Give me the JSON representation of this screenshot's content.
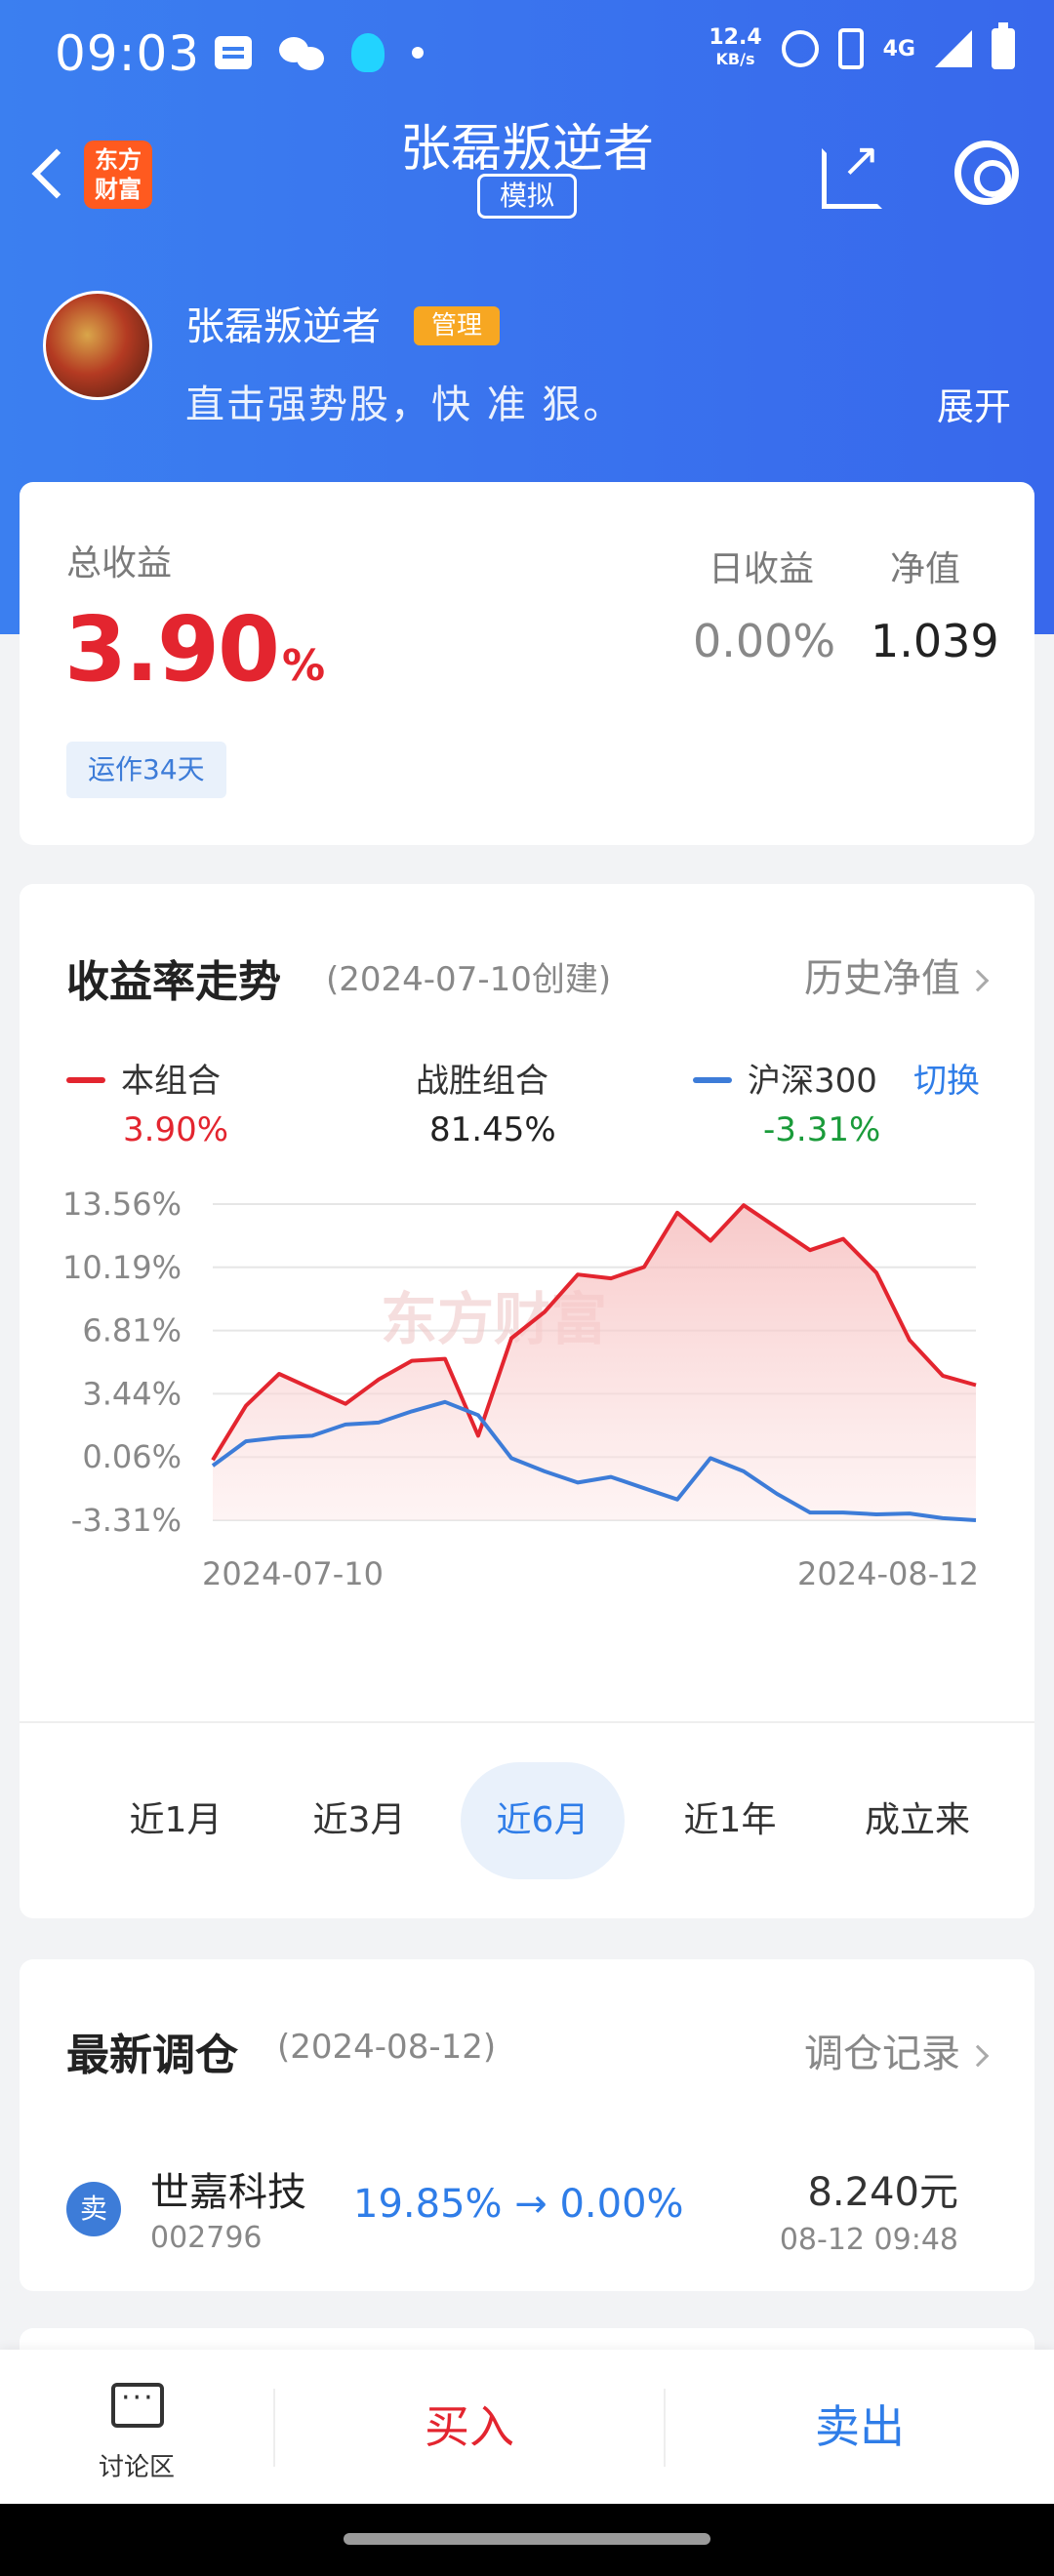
{
  "status_bar": {
    "time": "09:03",
    "net_speed_value": "12.4",
    "net_speed_unit": "KB/s",
    "network": "4G"
  },
  "header": {
    "brand_logo_text": "东方财富",
    "title": "张磊叛逆者",
    "tag": "模拟"
  },
  "profile": {
    "name": "张磊叛逆者",
    "badge": "管理",
    "description": "直击强势股，快 准 狠。",
    "expand_label": "展开"
  },
  "summary": {
    "total_label": "总收益",
    "total_value": "3.90",
    "total_unit": "%",
    "run_days": "运作34天",
    "daily_label": "日收益",
    "daily_value": "0.00%",
    "nav_label": "净值",
    "nav_value": "1.039"
  },
  "trend": {
    "title": "收益率走势",
    "created": "(2024-07-10创建)",
    "history_link": "历史净值",
    "legend": {
      "portfolio_name": "本组合",
      "portfolio_value": "3.90%",
      "beat_name": "战胜组合",
      "beat_value": "81.45%",
      "index_name": "沪深300",
      "index_value": "-3.31%",
      "switch_label": "切换"
    },
    "watermark": "东方财富",
    "range_tabs": [
      "近1月",
      "近3月",
      "近6月",
      "近1年",
      "成立来"
    ],
    "active_tab_index": 2
  },
  "chart_data": {
    "type": "line",
    "x_start": "2024-07-10",
    "x_end": "2024-08-12",
    "y_ticks": [
      "13.56%",
      "10.19%",
      "6.81%",
      "3.44%",
      "0.06%",
      "-3.31%"
    ],
    "ylim": [
      -3.31,
      13.56
    ],
    "series": [
      {
        "name": "本组合",
        "color": "#e3252f",
        "values": [
          -0.1,
          2.8,
          4.5,
          3.7,
          2.9,
          4.2,
          5.2,
          5.3,
          1.2,
          6.4,
          7.8,
          9.8,
          9.6,
          10.2,
          13.1,
          11.6,
          13.5,
          12.3,
          11.1,
          11.7,
          9.9,
          6.3,
          4.4,
          3.9
        ]
      },
      {
        "name": "沪深300",
        "color": "#3d7cd8",
        "values": [
          -0.4,
          0.9,
          1.1,
          1.2,
          1.8,
          1.9,
          2.5,
          3.0,
          2.3,
          0.0,
          -0.7,
          -1.3,
          -1.0,
          -1.6,
          -2.2,
          0.0,
          -0.7,
          -1.9,
          -2.9,
          -2.9,
          -3.0,
          -2.95,
          -3.2,
          -3.31
        ]
      }
    ]
  },
  "rebalance": {
    "title": "最新调仓",
    "date": "(2024-08-12)",
    "link": "调仓记录",
    "items": [
      {
        "action": "卖",
        "name": "世嘉科技",
        "code": "002796",
        "position_change": "19.85% → 0.00%",
        "price": "8.240元",
        "time": "08-12  09:48"
      }
    ]
  },
  "bottom_bar": {
    "discuss_label": "讨论区",
    "buy_label": "买入",
    "sell_label": "卖出"
  },
  "colors": {
    "brand_blue": "#3b7ff0",
    "up_red": "#e3252f",
    "down_green": "#1a9b3a",
    "accent_blue": "#2f7de8"
  }
}
